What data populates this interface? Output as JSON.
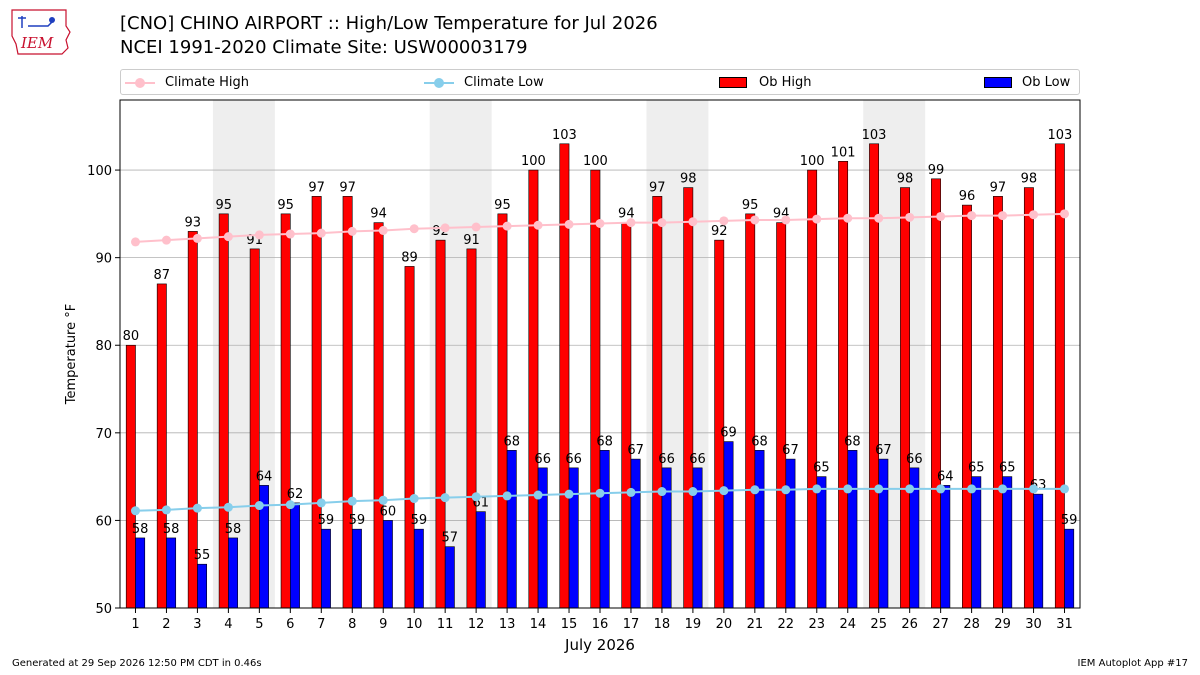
{
  "header": {
    "title_line1": "[CNO] CHINO AIRPORT :: High/Low Temperature for Jul 2026",
    "title_line2": "NCEI 1991-2020 Climate Site: USW00003179",
    "logo_text": "IEM"
  },
  "footer": {
    "left": "Generated at 29 Sep 2026 12:50 PM CDT in 0.46s",
    "right": "IEM Autoplot App #17"
  },
  "colors": {
    "climate_high": "#ffc0cb",
    "climate_low": "#87ceeb",
    "ob_high": "#ff0000",
    "ob_low": "#0000ff",
    "weekend_band": "#eeeeee",
    "grid": "#b0b0b0"
  },
  "chart_data": {
    "type": "bar",
    "xlabel": "July 2026",
    "ylabel": "Temperature °F",
    "ylim": [
      50,
      108
    ],
    "yticks": [
      50,
      60,
      70,
      80,
      90,
      100
    ],
    "grid": "horizontal",
    "legend_position": "top",
    "categories": [
      "1",
      "2",
      "3",
      "4",
      "5",
      "6",
      "7",
      "8",
      "9",
      "10",
      "11",
      "12",
      "13",
      "14",
      "15",
      "16",
      "17",
      "18",
      "19",
      "20",
      "21",
      "22",
      "23",
      "24",
      "25",
      "26",
      "27",
      "28",
      "29",
      "30",
      "31"
    ],
    "shaded_weekends": [
      [
        4,
        5
      ],
      [
        11,
        12
      ],
      [
        18,
        19
      ],
      [
        25,
        26
      ]
    ],
    "series": [
      {
        "name": "Ob High",
        "kind": "bar",
        "color": "#ff0000",
        "values": [
          80,
          87,
          93,
          95,
          91,
          95,
          97,
          97,
          94,
          89,
          92,
          91,
          95,
          100,
          103,
          100,
          94,
          97,
          98,
          92,
          95,
          94,
          100,
          101,
          103,
          98,
          99,
          96,
          97,
          98,
          103
        ]
      },
      {
        "name": "Ob Low",
        "kind": "bar",
        "color": "#0000ff",
        "values": [
          58,
          58,
          55,
          58,
          64,
          62,
          59,
          59,
          60,
          59,
          57,
          61,
          68,
          66,
          66,
          68,
          67,
          66,
          66,
          69,
          68,
          67,
          65,
          68,
          67,
          66,
          64,
          65,
          65,
          63,
          59
        ]
      },
      {
        "name": "Climate High",
        "kind": "line",
        "color": "#ffc0cb",
        "values": [
          91.8,
          92.0,
          92.2,
          92.4,
          92.6,
          92.7,
          92.8,
          93.0,
          93.1,
          93.3,
          93.4,
          93.5,
          93.6,
          93.7,
          93.8,
          93.9,
          94.0,
          94.0,
          94.1,
          94.2,
          94.3,
          94.3,
          94.4,
          94.5,
          94.5,
          94.6,
          94.7,
          94.8,
          94.8,
          94.9,
          95.0
        ]
      },
      {
        "name": "Climate Low",
        "kind": "line",
        "color": "#87ceeb",
        "values": [
          61.1,
          61.2,
          61.4,
          61.5,
          61.7,
          61.8,
          62.0,
          62.2,
          62.3,
          62.5,
          62.6,
          62.7,
          62.8,
          62.9,
          63.0,
          63.1,
          63.2,
          63.3,
          63.3,
          63.4,
          63.5,
          63.5,
          63.6,
          63.6,
          63.6,
          63.6,
          63.6,
          63.6,
          63.6,
          63.6,
          63.6
        ]
      }
    ]
  }
}
